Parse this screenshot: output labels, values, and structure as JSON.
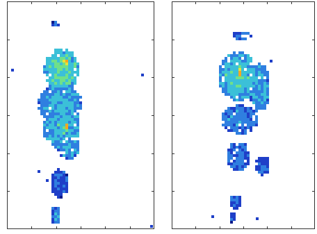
{
  "chart_data": [
    {
      "type": "heatmap",
      "grid": false,
      "xlim": [
        0,
        1
      ],
      "ylim": [
        0,
        1
      ],
      "colormap": [
        "#0a1a8a",
        "#1f3fc8",
        "#2f7fe0",
        "#3bc0d8",
        "#6fe08a",
        "#e6e23a",
        "#f5a623"
      ],
      "blobs": [
        {
          "cx": 0.33,
          "cy": 0.1,
          "rx": 0.03,
          "ry": 0.012,
          "v": 0.3
        },
        {
          "cx": 0.37,
          "cy": 0.3,
          "rx": 0.11,
          "ry": 0.09,
          "v": 0.6
        },
        {
          "cx": 0.4,
          "cy": 0.27,
          "rx": 0.04,
          "ry": 0.03,
          "v": 0.9
        },
        {
          "cx": 0.36,
          "cy": 0.45,
          "rx": 0.14,
          "ry": 0.08,
          "v": 0.45
        },
        {
          "cx": 0.37,
          "cy": 0.55,
          "rx": 0.12,
          "ry": 0.09,
          "v": 0.5
        },
        {
          "cx": 0.4,
          "cy": 0.55,
          "rx": 0.03,
          "ry": 0.05,
          "v": 0.95
        },
        {
          "cx": 0.42,
          "cy": 0.64,
          "rx": 0.07,
          "ry": 0.05,
          "v": 0.45
        },
        {
          "cx": 0.36,
          "cy": 0.8,
          "rx": 0.06,
          "ry": 0.06,
          "v": 0.3
        },
        {
          "cx": 0.33,
          "cy": 0.94,
          "rx": 0.035,
          "ry": 0.035,
          "v": 0.4
        }
      ],
      "outliers": [
        {
          "x": 0.03,
          "y": 0.3,
          "v": 0.2
        },
        {
          "x": 0.93,
          "y": 0.32,
          "v": 0.2
        },
        {
          "x": 0.21,
          "y": 0.75,
          "v": 0.15
        },
        {
          "x": 0.27,
          "y": 0.79,
          "v": 0.15
        },
        {
          "x": 0.99,
          "y": 0.995,
          "v": 0.2
        }
      ]
    },
    {
      "type": "heatmap",
      "grid": false,
      "xlim": [
        0,
        1
      ],
      "ylim": [
        0,
        1
      ],
      "colormap": [
        "#0a1a8a",
        "#1f3fc8",
        "#2f7fe0",
        "#3bc0d8",
        "#6fe08a",
        "#e6e23a",
        "#f5a623"
      ],
      "blobs": [
        {
          "cx": 0.5,
          "cy": 0.15,
          "rx": 0.07,
          "ry": 0.02,
          "v": 0.35
        },
        {
          "cx": 0.47,
          "cy": 0.33,
          "rx": 0.13,
          "ry": 0.1,
          "v": 0.55
        },
        {
          "cx": 0.48,
          "cy": 0.32,
          "rx": 0.04,
          "ry": 0.07,
          "v": 0.9
        },
        {
          "cx": 0.62,
          "cy": 0.38,
          "rx": 0.07,
          "ry": 0.1,
          "v": 0.45
        },
        {
          "cx": 0.48,
          "cy": 0.52,
          "rx": 0.12,
          "ry": 0.06,
          "v": 0.4
        },
        {
          "cx": 0.47,
          "cy": 0.68,
          "rx": 0.08,
          "ry": 0.06,
          "v": 0.35
        },
        {
          "cx": 0.64,
          "cy": 0.72,
          "rx": 0.05,
          "ry": 0.04,
          "v": 0.3
        },
        {
          "cx": 0.45,
          "cy": 0.88,
          "rx": 0.04,
          "ry": 0.03,
          "v": 0.3
        },
        {
          "cx": 0.43,
          "cy": 0.95,
          "rx": 0.025,
          "ry": 0.02,
          "v": 0.25
        }
      ],
      "outliers": [
        {
          "x": 0.7,
          "y": 0.26,
          "v": 0.2
        },
        {
          "x": 0.28,
          "y": 0.95,
          "v": 0.15
        },
        {
          "x": 0.6,
          "y": 0.96,
          "v": 0.15
        }
      ]
    }
  ]
}
